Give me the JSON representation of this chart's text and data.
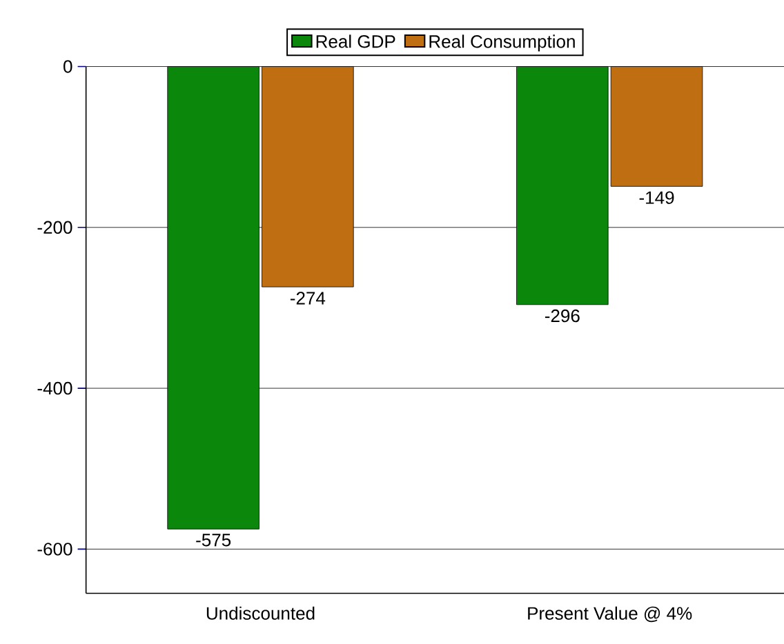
{
  "chart_data": {
    "type": "bar",
    "categories": [
      "Undiscounted",
      "Present Value @ 4%"
    ],
    "series": [
      {
        "name": "Real GDP",
        "color": "#0b870b",
        "values": [
          -575,
          -296
        ]
      },
      {
        "name": "Real Consumption",
        "color": "#bf6e12",
        "values": [
          -274,
          -149
        ]
      }
    ],
    "ylim": [
      -655,
      0
    ],
    "yticks": [
      0,
      -200,
      -400,
      -600
    ],
    "grid": "y",
    "legend": "top",
    "data_labels": true
  }
}
